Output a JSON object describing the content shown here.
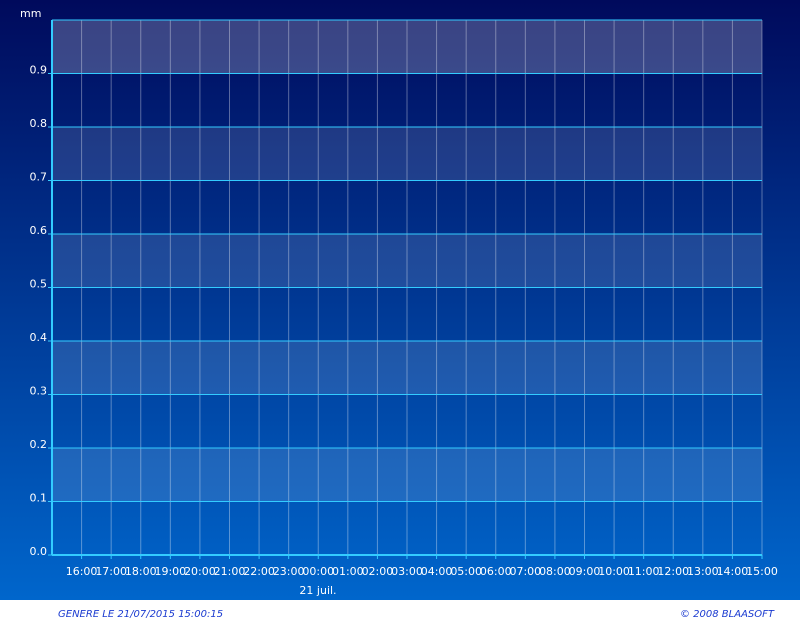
{
  "chart_data": {
    "type": "bar",
    "y_label": "mm",
    "categories": [
      "16:00",
      "17:00",
      "18:00",
      "19:00",
      "20:00",
      "21:00",
      "22:00",
      "23:00",
      "00:00",
      "01:00",
      "02:00",
      "03:00",
      "04:00",
      "05:00",
      "06:00",
      "07:00",
      "08:00",
      "09:00",
      "10:00",
      "11:00",
      "12:00",
      "13:00",
      "14:00",
      "15:00"
    ],
    "date_label": "21 juil.",
    "ylim": [
      0,
      1
    ],
    "yticks": [
      {
        "value": 0,
        "label": "0.0"
      },
      0.1,
      0.2,
      0.3,
      0.4,
      0.5,
      0.6,
      0.7,
      0.8,
      0.9
    ],
    "grid": true
  },
  "footer": {
    "generated": "GENERE LE 21/07/2015 15:00:15",
    "copyright": "© 2008 BLAASOFT"
  }
}
